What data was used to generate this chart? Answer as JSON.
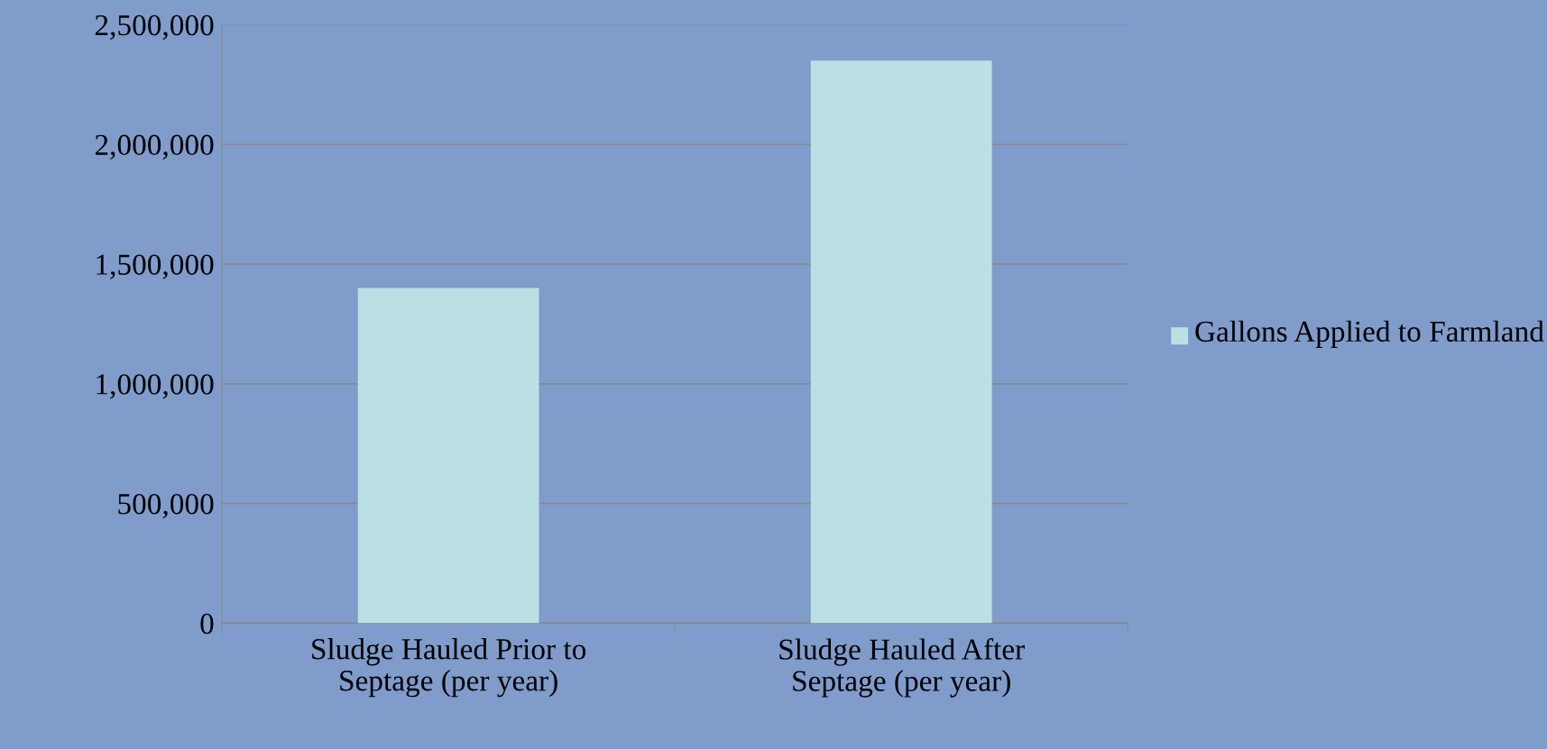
{
  "chart_data": {
    "type": "bar",
    "categories": [
      "Sludge Hauled Prior to\nSeptage (per year)",
      "Sludge Hauled After\nSeptage (per year)"
    ],
    "series": [
      {
        "name": "Gallons Applied to Farmland",
        "color": "#bbe0e3",
        "values": [
          1400000,
          2350000
        ]
      }
    ],
    "ylim": [
      0,
      2500000
    ],
    "yticks": [
      {
        "value": 0,
        "label": "0"
      },
      {
        "value": 500000,
        "label": "500,000"
      },
      {
        "value": 1000000,
        "label": "1,000,000"
      },
      {
        "value": 1500000,
        "label": "1,500,000"
      },
      {
        "value": 2000000,
        "label": "2,000,000"
      },
      {
        "value": 2500000,
        "label": "2,500,000"
      }
    ],
    "grid": "y",
    "legend": "right"
  }
}
